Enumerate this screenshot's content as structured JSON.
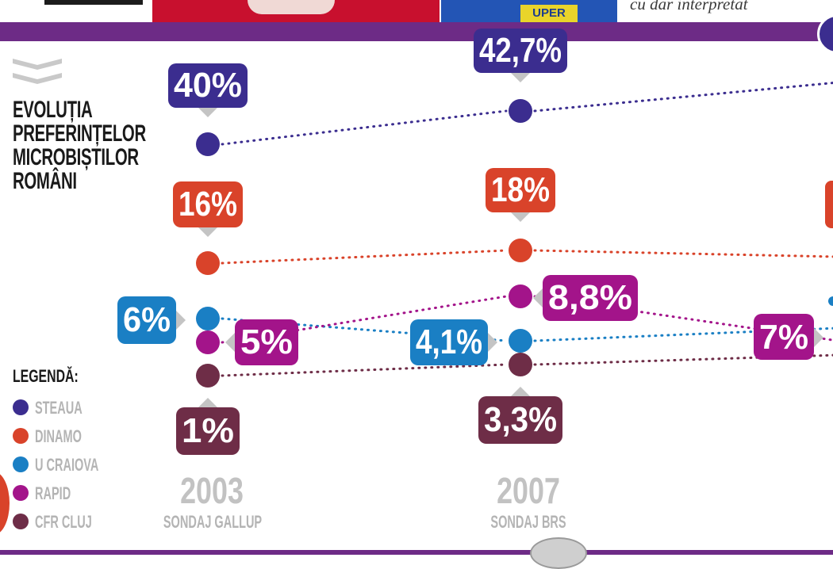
{
  "header": {
    "caption": "cu dar interpretat"
  },
  "title_lines": [
    "EVOLUȚIA",
    "PREFERINȚELOR",
    "MICROBIȘTILOR",
    "ROMÂNI"
  ],
  "legend": {
    "title": "LEGENDĂ:",
    "items": [
      {
        "label": "STEAUA",
        "color": "#3b2d8f"
      },
      {
        "label": "DINAMO",
        "color": "#d9432a"
      },
      {
        "label": "U CRAIOVA",
        "color": "#1a7fc4"
      },
      {
        "label": "RAPID",
        "color": "#a3148a"
      },
      {
        "label": "CFR CLUJ",
        "color": "#6e2d47"
      }
    ]
  },
  "chart_data": {
    "type": "line",
    "title": "EVOLUȚIA PREFERINȚELOR MICROBIȘTILOR ROMÂNI",
    "categories": [
      "2003",
      "2007"
    ],
    "sources": [
      "SONDAJ GALLUP",
      "SONDAJ BRS"
    ],
    "series": [
      {
        "name": "STEAUA",
        "color": "#3b2d8f",
        "values": [
          40,
          42.7
        ],
        "labels": [
          "40%",
          "42,7%"
        ]
      },
      {
        "name": "DINAMO",
        "color": "#d9432a",
        "values": [
          16,
          18
        ],
        "labels": [
          "16%",
          "18%"
        ]
      },
      {
        "name": "U CRAIOVA",
        "color": "#1a7fc4",
        "values": [
          6,
          4.1
        ],
        "labels": [
          "6%",
          "4,1%"
        ]
      },
      {
        "name": "RAPID",
        "color": "#a3148a",
        "values": [
          5,
          8.8
        ],
        "labels": [
          "5%",
          "8,8%"
        ]
      },
      {
        "name": "CFR CLUJ",
        "color": "#6e2d47",
        "values": [
          1,
          3.3
        ],
        "labels": [
          "1%",
          "3,3%"
        ]
      }
    ],
    "partial_next_column": {
      "values": [
        {
          "series": "RAPID",
          "value": 7,
          "label": "7%"
        }
      ]
    }
  }
}
